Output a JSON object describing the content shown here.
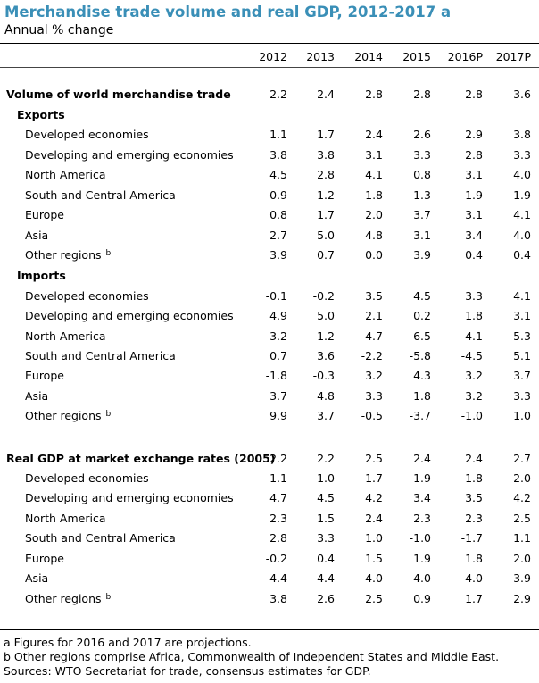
{
  "title": "Merchandise trade volume and real GDP, 2012-2017 a",
  "subtitle": "Annual % change",
  "columns": [
    "2012",
    "2013",
    "2014",
    "2015",
    "2016P",
    "2017P"
  ],
  "rows": [
    {
      "label": "Volume of world merchandise trade",
      "level": 0,
      "values": [
        "2.2",
        "2.4",
        "2.8",
        "2.8",
        "2.8",
        "3.6"
      ]
    },
    {
      "label": "Exports",
      "level": 1,
      "values": []
    },
    {
      "label": "Developed economies",
      "level": 2,
      "values": [
        "1.1",
        "1.7",
        "2.4",
        "2.6",
        "2.9",
        "3.8"
      ]
    },
    {
      "label": "Developing and emerging economies",
      "level": 2,
      "values": [
        "3.8",
        "3.8",
        "3.1",
        "3.3",
        "2.8",
        "3.3"
      ]
    },
    {
      "label": "North America",
      "level": 2,
      "values": [
        "4.5",
        "2.8",
        "4.1",
        "0.8",
        "3.1",
        "4.0"
      ]
    },
    {
      "label": "South and Central America",
      "level": 2,
      "values": [
        "0.9",
        "1.2",
        "-1.8",
        "1.3",
        "1.9",
        "1.9"
      ]
    },
    {
      "label": "Europe",
      "level": 2,
      "values": [
        "0.8",
        "1.7",
        "2.0",
        "3.7",
        "3.1",
        "4.1"
      ]
    },
    {
      "label": "Asia",
      "level": 2,
      "values": [
        "2.7",
        "5.0",
        "4.8",
        "3.1",
        "3.4",
        "4.0"
      ]
    },
    {
      "label": "Other regions",
      "sup": "b",
      "level": 2,
      "values": [
        "3.9",
        "0.7",
        "0.0",
        "3.9",
        "0.4",
        "0.4"
      ]
    },
    {
      "label": "Imports",
      "level": 1,
      "values": []
    },
    {
      "label": "Developed economies",
      "level": 2,
      "values": [
        "-0.1",
        "-0.2",
        "3.5",
        "4.5",
        "3.3",
        "4.1"
      ]
    },
    {
      "label": "Developing and emerging economies",
      "level": 2,
      "values": [
        "4.9",
        "5.0",
        "2.1",
        "0.2",
        "1.8",
        "3.1"
      ]
    },
    {
      "label": "North America",
      "level": 2,
      "values": [
        "3.2",
        "1.2",
        "4.7",
        "6.5",
        "4.1",
        "5.3"
      ]
    },
    {
      "label": "South and Central America",
      "level": 2,
      "values": [
        "0.7",
        "3.6",
        "-2.2",
        "-5.8",
        "-4.5",
        "5.1"
      ]
    },
    {
      "label": "Europe",
      "level": 2,
      "values": [
        "-1.8",
        "-0.3",
        "3.2",
        "4.3",
        "3.2",
        "3.7"
      ]
    },
    {
      "label": "Asia",
      "level": 2,
      "values": [
        "3.7",
        "4.8",
        "3.3",
        "1.8",
        "3.2",
        "3.3"
      ]
    },
    {
      "label": "Other regions",
      "sup": "b",
      "level": 2,
      "values": [
        "9.9",
        "3.7",
        "-0.5",
        "-3.7",
        "-1.0",
        "1.0"
      ]
    },
    {
      "label": "Real GDP at market exchange rates (2005)",
      "level": 0,
      "values": [
        "2.2",
        "2.2",
        "2.5",
        "2.4",
        "2.4",
        "2.7"
      ]
    },
    {
      "label": "Developed economies",
      "level": 2,
      "values": [
        "1.1",
        "1.0",
        "1.7",
        "1.9",
        "1.8",
        "2.0"
      ]
    },
    {
      "label": "Developing and emerging economies",
      "level": 2,
      "values": [
        "4.7",
        "4.5",
        "4.2",
        "3.4",
        "3.5",
        "4.2"
      ]
    },
    {
      "label": "North America",
      "level": 2,
      "values": [
        "2.3",
        "1.5",
        "2.4",
        "2.3",
        "2.3",
        "2.5"
      ]
    },
    {
      "label": "South and Central America",
      "level": 2,
      "values": [
        "2.8",
        "3.3",
        "1.0",
        "-1.0",
        "-1.7",
        "1.1"
      ]
    },
    {
      "label": "Europe",
      "level": 2,
      "values": [
        "-0.2",
        "0.4",
        "1.5",
        "1.9",
        "1.8",
        "2.0"
      ]
    },
    {
      "label": "Asia",
      "level": 2,
      "values": [
        "4.4",
        "4.4",
        "4.0",
        "4.0",
        "4.0",
        "3.9"
      ]
    },
    {
      "label": "Other regions",
      "sup": "b",
      "level": 2,
      "values": [
        "3.8",
        "2.6",
        "2.5",
        "0.9",
        "1.7",
        "2.9"
      ]
    }
  ],
  "notes": [
    "a Figures for 2016 and 2017 are projections.",
    "b Other regions comprise Africa, Commonwealth of Independent States and Middle East.",
    "Sources: WTO Secretariat for trade, consensus estimates for GDP."
  ]
}
